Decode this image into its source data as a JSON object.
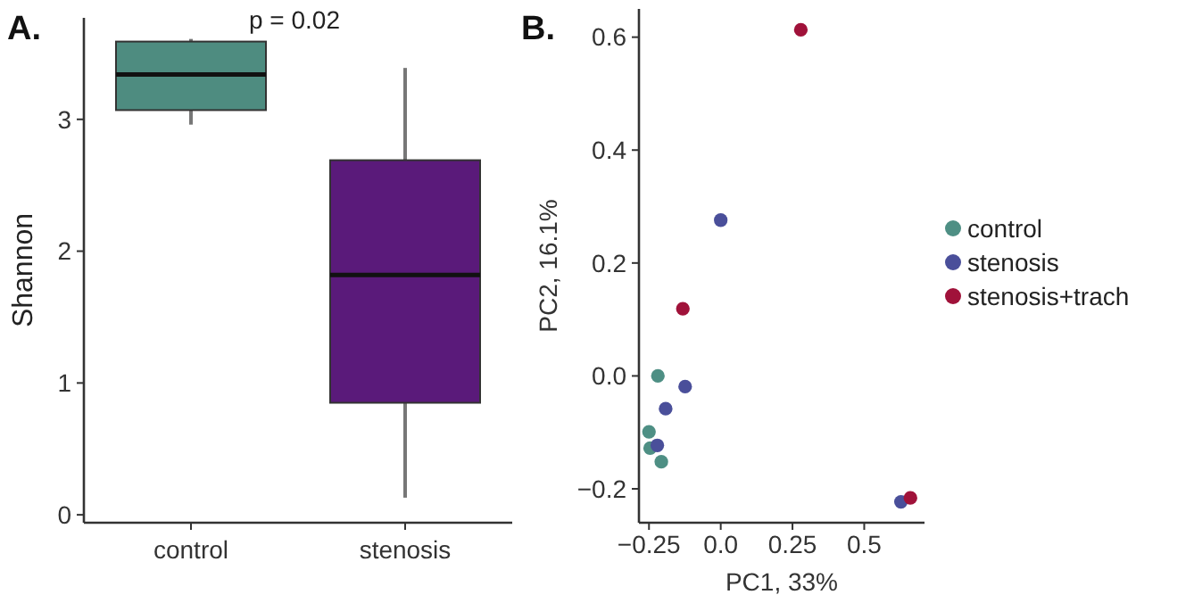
{
  "chart_data": [
    {
      "type": "box",
      "title": "A.",
      "ylabel": "Shannon",
      "categories": [
        "control",
        "stenosis"
      ],
      "colors": [
        "#4e8c80",
        "#5a1a7a"
      ],
      "boxes": [
        {
          "low": 2.96,
          "q1": 3.07,
          "median": 3.34,
          "q3": 3.59,
          "high": 3.61
        },
        {
          "low": 0.13,
          "q1": 0.85,
          "median": 1.82,
          "q3": 2.69,
          "high": 3.39
        }
      ],
      "ylim": [
        -0.06,
        3.77
      ],
      "yticks": [
        0,
        1,
        2,
        3
      ],
      "grid": false,
      "annotations": [
        "p = 0.02"
      ]
    },
    {
      "type": "scatter",
      "title": "B.",
      "xlabel": "PC1, 33%",
      "ylabel": "PC2, 16.1%",
      "marker": "circle",
      "legend": "right",
      "grid": false,
      "xlim": [
        -0.285,
        0.71
      ],
      "xticks": [
        {
          "value": -0.25,
          "label": "−0.25"
        },
        {
          "value": 0,
          "label": "0.0"
        },
        0.25,
        0.5
      ],
      "ylim": [
        -0.26,
        0.65
      ],
      "yticks": [
        {
          "value": -0.2,
          "label": "−0.2"
        },
        {
          "value": 0,
          "label": "0.0"
        },
        0.2,
        0.4,
        0.6
      ],
      "series": [
        {
          "name": "control",
          "color": "#4e8f84",
          "x": [
            -0.219,
            -0.25,
            -0.246,
            -0.207
          ],
          "values": [
            0.0,
            -0.099,
            -0.128,
            -0.152
          ]
        },
        {
          "name": "stenosis",
          "color": "#4a4f9a",
          "x": [
            0,
            -0.124,
            -0.192,
            -0.221,
            0.628
          ],
          "values": [
            0.276,
            -0.019,
            -0.058,
            -0.123,
            -0.223
          ]
        },
        {
          "name": "stenosis+trach",
          "color": "#a0123a",
          "x": [
            0.279,
            -0.132,
            0.661
          ],
          "values": [
            0.613,
            0.119,
            -0.216
          ]
        }
      ]
    }
  ]
}
